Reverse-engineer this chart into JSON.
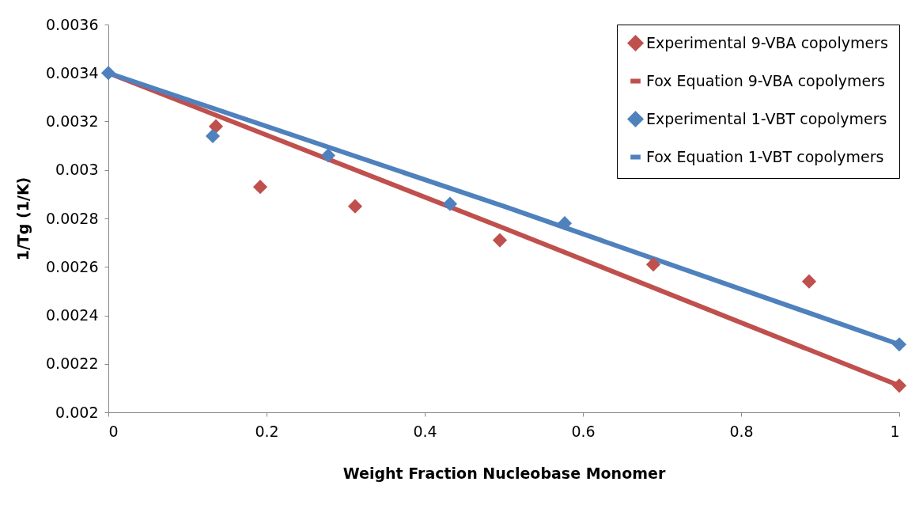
{
  "chart_data": {
    "type": "scatter",
    "xlabel": "Weight Fraction Nucleobase Monomer",
    "ylabel": "1/Tg (1/K)",
    "xlim": [
      0,
      1
    ],
    "xticks": [
      0,
      0.2,
      0.4,
      0.6,
      0.8,
      1
    ],
    "ylim": [
      0.002,
      0.0036
    ],
    "yticks": [
      0.002,
      0.0022,
      0.0024,
      0.0026,
      0.0028,
      0.003,
      0.0032,
      0.0034,
      0.0036
    ],
    "grid": false,
    "legend": "top right",
    "series": [
      {
        "name": "Experimental 9-VBA copolymers",
        "marker": "diamond",
        "color": "#c0504d",
        "x": [
          0.136,
          0.192,
          0.312,
          0.495,
          0.689,
          0.886,
          1
        ],
        "values": [
          0.00318,
          0.00293,
          0.00285,
          0.00271,
          0.00261,
          0.00254,
          0.00211
        ]
      },
      {
        "name": "Fox Equation 9-VBA copolymers",
        "type": "line",
        "color": "#c0504d",
        "x": [
          0,
          0.5,
          1
        ],
        "values": [
          0.0034,
          0.00276,
          0.00211
        ]
      },
      {
        "name": "Experimental 1-VBT copolymers",
        "marker": "diamond",
        "color": "#4f81bd",
        "x": [
          0,
          0.132,
          0.278,
          0.432,
          0.577,
          1
        ],
        "values": [
          0.0034,
          0.00314,
          0.00306,
          0.00286,
          0.00278,
          0.00228
        ]
      },
      {
        "name": "Fox Equation 1-VBT copolymers",
        "type": "line",
        "color": "#4f81bd",
        "x": [
          0,
          0.5,
          1
        ],
        "values": [
          0.0034,
          0.00285,
          0.00228
        ]
      }
    ]
  }
}
